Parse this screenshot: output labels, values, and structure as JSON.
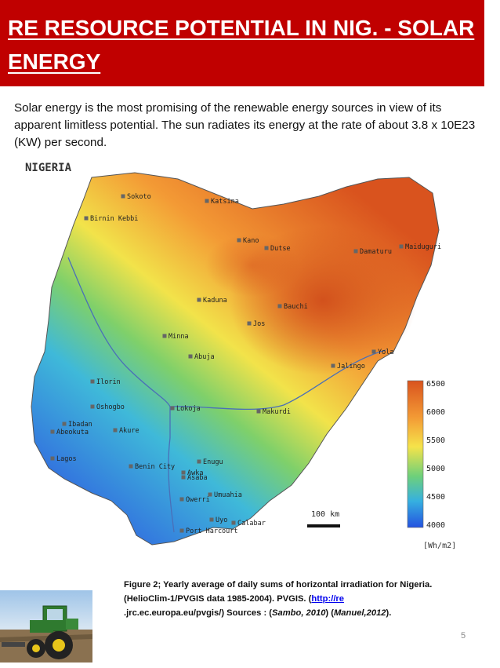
{
  "slide": {
    "title": "RE RESOURCE POTENTIAL IN NIG. - SOLAR ENERGY",
    "intro": "Solar energy is the most promising of the renewable energy sources in view of its apparent limitless potential. The sun radiates its energy at the rate of about 3.8 x 10E23 (KW) per second.",
    "page_number": "5"
  },
  "map": {
    "title": "NIGERIA",
    "cities": [
      "Sokoto",
      "Katsina",
      "Birnin Kebbi",
      "Kano",
      "Dutse",
      "Damaturu",
      "Maiduguri",
      "Kaduna",
      "Bauchi",
      "Jos",
      "Minna",
      "Abuja",
      "Yola",
      "Jalingo",
      "Ilorin",
      "Oshogbo",
      "Lokoja",
      "Makurdi",
      "Ibadan",
      "Abeokuta",
      "Akure",
      "Lagos",
      "Benin City",
      "Enugu",
      "Awka",
      "Asaba",
      "Owerri",
      "Umuahia",
      "Uyo",
      "Calabar",
      "Port Harcourt"
    ],
    "scale_label": "100 km",
    "legend_ticks": [
      "6500",
      "6000",
      "5500",
      "5000",
      "4500",
      "4000"
    ],
    "legend_unit": "[Wh/m2]",
    "colors": {
      "high": "#d9531e",
      "mid": "#f5e34a",
      "low": "#2f6fe0"
    }
  },
  "caption": {
    "part1": "Figure 2; Yearly average of daily sums of horizontal irradiation for Nigeria.(HelioClim-1/PVGIS data 1985-2004). PVGIS. (",
    "link1": "http://re",
    "part2": ".jrc.ec.europa.eu/pvgis/)  Sources : (",
    "src1": "Sambo, 2010",
    "part3": ") (",
    "src2": "Manuel,2012",
    "part4": ")."
  }
}
